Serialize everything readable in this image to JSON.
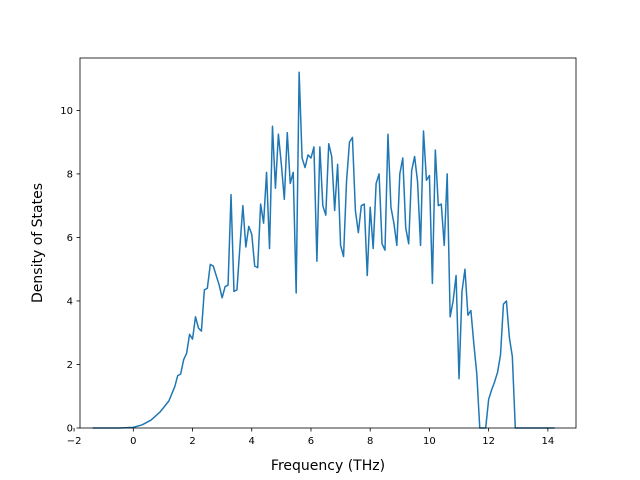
{
  "chart_data": {
    "type": "line",
    "title": "",
    "xlabel": "Frequency (THz)",
    "ylabel": "Density of States",
    "xlim": [
      -1.8,
      14.95
    ],
    "ylim": [
      0,
      11.65
    ],
    "grid": false,
    "line_color": "#1f77b4",
    "xticks": [
      -2,
      0,
      2,
      4,
      6,
      8,
      10,
      12,
      14
    ],
    "xtick_labels": [
      "−2",
      "0",
      "2",
      "4",
      "6",
      "8",
      "10",
      "12",
      "14"
    ],
    "yticks": [
      0,
      2,
      4,
      6,
      8,
      10
    ],
    "ytick_labels": [
      "0",
      "2",
      "4",
      "6",
      "8",
      "10"
    ],
    "series": [
      {
        "x": [
          -1.35,
          -0.5,
          0.0,
          0.3,
          0.6,
          0.9,
          1.2,
          1.4,
          1.5,
          1.6,
          1.7,
          1.8,
          1.9,
          2.0,
          2.1,
          2.2,
          2.3,
          2.4,
          2.5,
          2.6,
          2.7,
          2.8,
          2.9,
          3.0,
          3.1,
          3.2,
          3.3,
          3.4,
          3.5,
          3.6,
          3.7,
          3.8,
          3.9,
          4.0,
          4.1,
          4.2,
          4.3,
          4.4,
          4.5,
          4.6,
          4.7,
          4.8,
          4.9,
          5.0,
          5.1,
          5.2,
          5.3,
          5.4,
          5.5,
          5.6,
          5.7,
          5.8,
          5.9,
          6.0,
          6.1,
          6.2,
          6.3,
          6.4,
          6.5,
          6.6,
          6.7,
          6.8,
          6.9,
          7.0,
          7.1,
          7.2,
          7.3,
          7.4,
          7.5,
          7.6,
          7.7,
          7.8,
          7.9,
          8.0,
          8.1,
          8.2,
          8.3,
          8.4,
          8.5,
          8.6,
          8.7,
          8.8,
          8.9,
          9.0,
          9.1,
          9.2,
          9.3,
          9.4,
          9.5,
          9.6,
          9.7,
          9.8,
          9.9,
          10.0,
          10.1,
          10.2,
          10.3,
          10.4,
          10.5,
          10.6,
          10.7,
          10.8,
          10.9,
          11.0,
          11.1,
          11.2,
          11.3,
          11.4,
          11.5,
          11.6,
          11.7,
          11.8,
          11.9,
          12.0,
          12.1,
          12.2,
          12.3,
          12.4,
          12.5,
          12.6,
          12.7,
          12.8,
          12.9,
          13.0,
          13.3,
          14.2
        ],
        "y": [
          0,
          0,
          0.02,
          0.1,
          0.25,
          0.5,
          0.85,
          1.3,
          1.65,
          1.7,
          2.15,
          2.35,
          2.95,
          2.8,
          3.5,
          3.15,
          3.05,
          4.35,
          4.4,
          5.15,
          5.1,
          4.8,
          4.5,
          4.1,
          4.45,
          4.5,
          7.35,
          4.3,
          4.35,
          5.7,
          7.0,
          5.7,
          6.35,
          6.1,
          5.1,
          5.05,
          7.05,
          6.45,
          8.05,
          5.65,
          9.5,
          7.55,
          9.25,
          8.3,
          7.2,
          9.3,
          7.7,
          8.05,
          4.25,
          11.2,
          8.5,
          8.2,
          8.6,
          8.5,
          8.85,
          5.25,
          8.85,
          7.0,
          6.7,
          8.95,
          8.55,
          6.85,
          8.3,
          5.75,
          5.4,
          7.75,
          9.0,
          9.15,
          6.85,
          6.15,
          7.0,
          7.05,
          4.8,
          6.95,
          5.65,
          7.7,
          8.0,
          5.8,
          5.6,
          9.25,
          6.95,
          6.45,
          5.75,
          8.0,
          8.5,
          6.3,
          5.8,
          8.1,
          8.55,
          7.75,
          5.75,
          9.35,
          7.8,
          7.95,
          4.55,
          8.75,
          7.0,
          7.05,
          5.75,
          8.0,
          3.5,
          4.0,
          4.8,
          1.55,
          4.3,
          5.0,
          3.55,
          3.7,
          2.65,
          1.7,
          0,
          0,
          0,
          0.9,
          1.2,
          1.45,
          1.75,
          2.3,
          3.9,
          4.0,
          2.85,
          2.25,
          0,
          0,
          0,
          0
        ]
      }
    ]
  }
}
